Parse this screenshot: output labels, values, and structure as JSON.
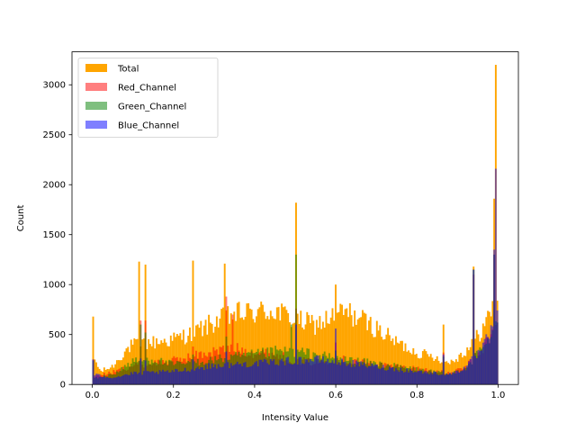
{
  "chart_data": {
    "type": "histogram",
    "title": "",
    "xlabel": "Intensity Value",
    "ylabel": "Count",
    "xlim": [
      -0.05,
      1.05
    ],
    "ylim": [
      0,
      3330
    ],
    "xticks": [
      0.0,
      0.2,
      0.4,
      0.6,
      0.8,
      1.0
    ],
    "xtick_labels": [
      "0.0",
      "0.2",
      "0.4",
      "0.6",
      "0.8",
      "1.0"
    ],
    "yticks": [
      0,
      500,
      1000,
      1500,
      2000,
      2500,
      3000
    ],
    "ytick_labels": [
      "0",
      "500",
      "1000",
      "1500",
      "2000",
      "2500",
      "3000"
    ],
    "bins": 256,
    "bin_range": [
      0,
      1
    ],
    "legend": {
      "placement": "upper left",
      "entries": [
        "Total",
        "Red_Channel",
        "Green_Channel",
        "Blue_Channel"
      ]
    },
    "series": [
      {
        "name": "Total",
        "color": "#ffa500",
        "alpha": 1.0,
        "profile": [
          [
            0.0,
            300
          ],
          [
            0.02,
            130
          ],
          [
            0.05,
            180
          ],
          [
            0.08,
            330
          ],
          [
            0.1,
            400
          ],
          [
            0.15,
            420
          ],
          [
            0.2,
            450
          ],
          [
            0.25,
            520
          ],
          [
            0.3,
            620
          ],
          [
            0.35,
            700
          ],
          [
            0.4,
            720
          ],
          [
            0.45,
            740
          ],
          [
            0.5,
            640
          ],
          [
            0.55,
            600
          ],
          [
            0.58,
            650
          ],
          [
            0.62,
            730
          ],
          [
            0.66,
            660
          ],
          [
            0.7,
            560
          ],
          [
            0.75,
            420
          ],
          [
            0.8,
            320
          ],
          [
            0.85,
            270
          ],
          [
            0.88,
            220
          ],
          [
            0.91,
            300
          ],
          [
            0.94,
            420
          ],
          [
            0.97,
            620
          ],
          [
            1.0,
            900
          ]
        ],
        "spikes": [
          [
            0.0,
            680
          ],
          [
            0.117,
            1230
          ],
          [
            0.129,
            1200
          ],
          [
            0.247,
            1240
          ],
          [
            0.325,
            1210
          ],
          [
            0.502,
            1820
          ],
          [
            0.6,
            1000
          ],
          [
            0.867,
            600
          ],
          [
            0.941,
            1180
          ],
          [
            0.99,
            1860
          ],
          [
            0.996,
            3200
          ]
        ]
      },
      {
        "name": "Red_Channel",
        "color": "#ff0000",
        "alpha": 0.5,
        "profile": [
          [
            0.0,
            80
          ],
          [
            0.05,
            120
          ],
          [
            0.1,
            190
          ],
          [
            0.2,
            240
          ],
          [
            0.3,
            330
          ],
          [
            0.35,
            360
          ],
          [
            0.4,
            320
          ],
          [
            0.45,
            300
          ],
          [
            0.5,
            240
          ],
          [
            0.55,
            220
          ],
          [
            0.6,
            260
          ],
          [
            0.7,
            200
          ],
          [
            0.8,
            160
          ],
          [
            0.88,
            110
          ],
          [
            0.92,
            170
          ],
          [
            0.96,
            350
          ],
          [
            1.0,
            600
          ]
        ],
        "spikes": [
          [
            0.0,
            250
          ],
          [
            0.118,
            640
          ],
          [
            0.129,
            640
          ],
          [
            0.247,
            380
          ],
          [
            0.329,
            880
          ],
          [
            0.345,
            700
          ],
          [
            0.502,
            760
          ],
          [
            0.6,
            420
          ],
          [
            0.867,
            320
          ],
          [
            0.941,
            1100
          ],
          [
            0.99,
            1300
          ]
        ]
      },
      {
        "name": "Green_Channel",
        "color": "#008000",
        "alpha": 0.5,
        "profile": [
          [
            0.0,
            60
          ],
          [
            0.05,
            100
          ],
          [
            0.1,
            230
          ],
          [
            0.15,
            250
          ],
          [
            0.2,
            200
          ],
          [
            0.25,
            220
          ],
          [
            0.3,
            250
          ],
          [
            0.4,
            300
          ],
          [
            0.45,
            330
          ],
          [
            0.5,
            330
          ],
          [
            0.55,
            300
          ],
          [
            0.6,
            260
          ],
          [
            0.7,
            210
          ],
          [
            0.8,
            150
          ],
          [
            0.88,
            100
          ],
          [
            0.92,
            170
          ],
          [
            0.96,
            350
          ],
          [
            1.0,
            600
          ]
        ],
        "spikes": [
          [
            0.0,
            240
          ],
          [
            0.118,
            600
          ],
          [
            0.129,
            520
          ],
          [
            0.247,
            300
          ],
          [
            0.329,
            480
          ],
          [
            0.49,
            600
          ],
          [
            0.502,
            1300
          ],
          [
            0.6,
            340
          ],
          [
            0.867,
            280
          ],
          [
            0.941,
            1150
          ],
          [
            0.99,
            1300
          ]
        ]
      },
      {
        "name": "Blue_Channel",
        "color": "#0000ff",
        "alpha": 0.5,
        "profile": [
          [
            0.0,
            100
          ],
          [
            0.05,
            70
          ],
          [
            0.1,
            110
          ],
          [
            0.2,
            130
          ],
          [
            0.25,
            160
          ],
          [
            0.3,
            190
          ],
          [
            0.4,
            210
          ],
          [
            0.5,
            240
          ],
          [
            0.55,
            250
          ],
          [
            0.6,
            230
          ],
          [
            0.7,
            180
          ],
          [
            0.8,
            130
          ],
          [
            0.88,
            100
          ],
          [
            0.92,
            170
          ],
          [
            0.96,
            350
          ],
          [
            1.0,
            650
          ]
        ],
        "spikes": [
          [
            0.0,
            250
          ],
          [
            0.118,
            260
          ],
          [
            0.129,
            240
          ],
          [
            0.247,
            250
          ],
          [
            0.329,
            330
          ],
          [
            0.502,
            600
          ],
          [
            0.6,
            560
          ],
          [
            0.867,
            300
          ],
          [
            0.941,
            1150
          ],
          [
            0.99,
            1350
          ],
          [
            0.996,
            2160
          ]
        ]
      }
    ]
  }
}
